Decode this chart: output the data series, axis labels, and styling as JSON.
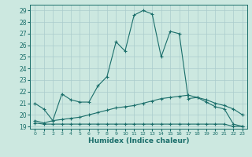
{
  "xlabel": "Humidex (Indice chaleur)",
  "background_color": "#cce8e0",
  "grid_color": "#aacccc",
  "line_color": "#1a6e6a",
  "xlim": [
    -0.5,
    23.5
  ],
  "ylim": [
    18.8,
    29.5
  ],
  "xticks": [
    0,
    1,
    2,
    3,
    4,
    5,
    6,
    7,
    8,
    9,
    10,
    11,
    12,
    13,
    14,
    15,
    16,
    17,
    18,
    19,
    20,
    21,
    22,
    23
  ],
  "yticks": [
    19,
    20,
    21,
    22,
    23,
    24,
    25,
    26,
    27,
    28,
    29
  ],
  "line1_x": [
    0,
    1,
    2,
    3,
    4,
    5,
    6,
    7,
    8,
    9,
    10,
    11,
    12,
    13,
    14,
    15,
    16,
    17,
    18,
    19,
    20,
    21,
    22,
    23
  ],
  "line1_y": [
    21.0,
    20.5,
    19.5,
    21.8,
    21.3,
    21.1,
    21.1,
    22.5,
    23.3,
    26.3,
    25.5,
    28.6,
    29.0,
    28.7,
    25.0,
    27.2,
    27.0,
    21.4,
    21.5,
    21.1,
    20.7,
    20.5,
    19.2,
    19.0
  ],
  "line2_x": [
    0,
    1,
    2,
    3,
    4,
    5,
    6,
    7,
    8,
    9,
    10,
    11,
    12,
    13,
    14,
    15,
    16,
    17,
    18,
    19,
    20,
    21,
    22,
    23
  ],
  "line2_y": [
    19.5,
    19.3,
    19.5,
    19.6,
    19.7,
    19.8,
    20.0,
    20.2,
    20.4,
    20.6,
    20.7,
    20.8,
    21.0,
    21.2,
    21.4,
    21.5,
    21.6,
    21.7,
    21.5,
    21.3,
    21.0,
    20.8,
    20.5,
    20.0
  ],
  "line3_x": [
    0,
    1,
    2,
    3,
    4,
    5,
    6,
    7,
    8,
    9,
    10,
    11,
    12,
    13,
    14,
    15,
    16,
    17,
    18,
    19,
    20,
    21,
    22,
    23
  ],
  "line3_y": [
    19.3,
    19.2,
    19.2,
    19.2,
    19.2,
    19.2,
    19.2,
    19.2,
    19.2,
    19.2,
    19.2,
    19.2,
    19.2,
    19.2,
    19.2,
    19.2,
    19.2,
    19.2,
    19.2,
    19.2,
    19.2,
    19.2,
    19.0,
    19.0
  ]
}
